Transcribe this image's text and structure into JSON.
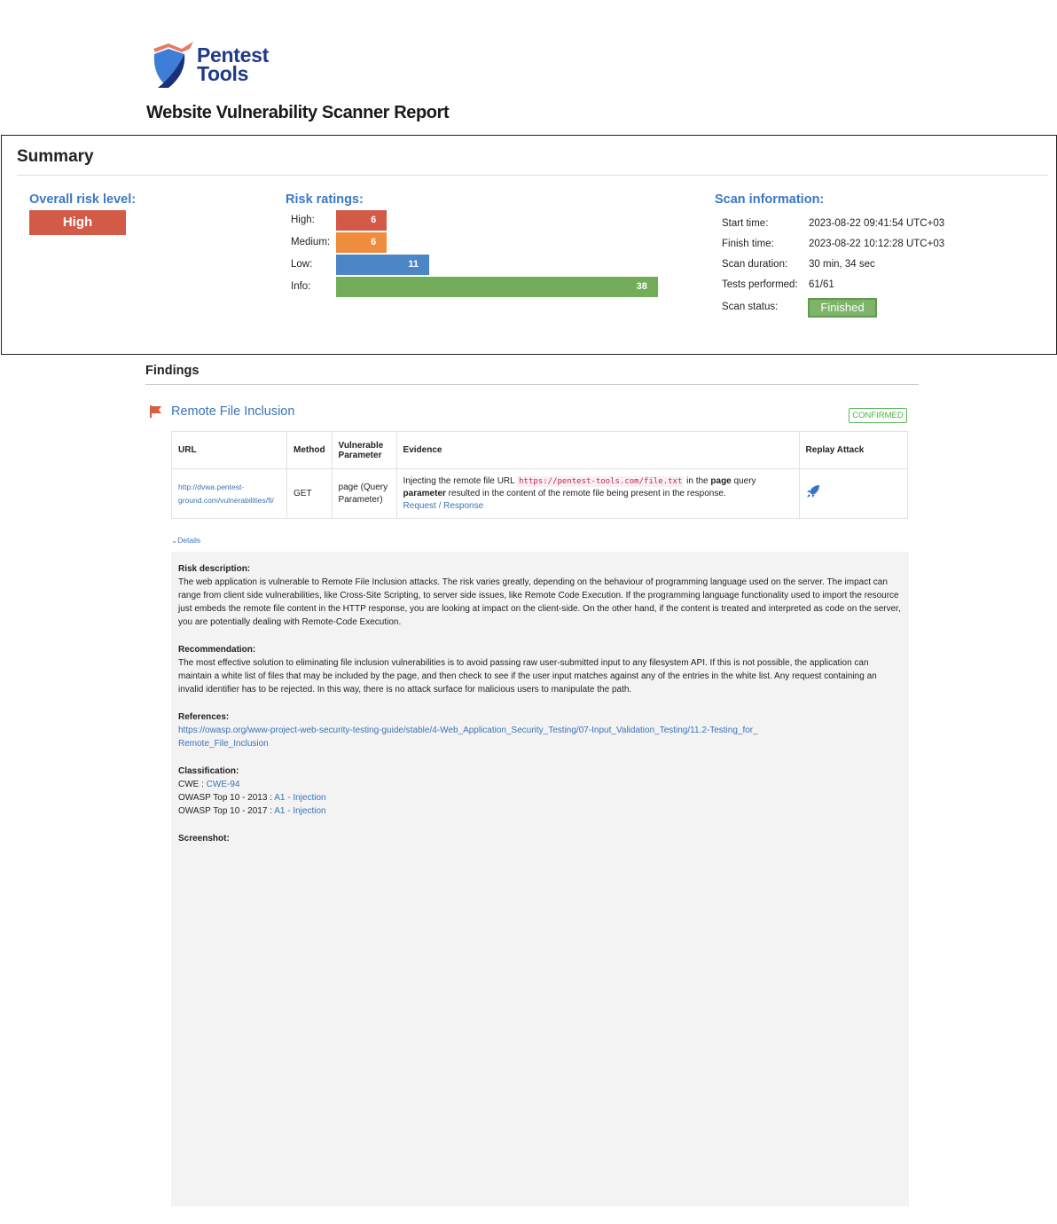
{
  "logo": {
    "line1": "Pentest",
    "line2": "Tools"
  },
  "report_title": "Website Vulnerability Scanner Report",
  "summary": {
    "title": "Summary",
    "overall_label": "Overall risk level:",
    "overall_value": "High",
    "risk_label": "Risk ratings:",
    "ratings": [
      {
        "label": "High:",
        "value": 6,
        "color": "#d25a47"
      },
      {
        "label": "Medium:",
        "value": 6,
        "color": "#ef8c3e"
      },
      {
        "label": "Low:",
        "value": 11,
        "color": "#4d86c6"
      },
      {
        "label": "Info:",
        "value": 38,
        "color": "#74ad59"
      }
    ],
    "scan_label": "Scan information:",
    "scan": [
      {
        "label": "Start time:",
        "value": "2023-08-22 09:41:54 UTC+03"
      },
      {
        "label": "Finish time:",
        "value": "2023-08-22 10:12:28 UTC+03"
      },
      {
        "label": "Scan duration:",
        "value": "30 min, 34 sec"
      },
      {
        "label": "Tests performed:",
        "value": "61/61"
      },
      {
        "label": "Scan status:",
        "value": "Finished"
      }
    ]
  },
  "findings": {
    "title": "Findings",
    "vuln_title": "Remote File Inclusion",
    "status": "CONFIRMED",
    "headers": [
      "URL",
      "Method",
      "Vulnerable Parameter",
      "Evidence",
      "Replay Attack"
    ],
    "row": {
      "url": "http://dvwa.pentest-ground.com/vulnerabilities/fi/",
      "method": "GET",
      "param": "page (Query Parameter)",
      "ev_pre": "Injecting the remote file URL ",
      "ev_code": "https://pentest-tools.com/file.txt",
      "ev_mid": " in the ",
      "ev_bold1": "page",
      "ev_mid2": " query ",
      "ev_bold2": "parameter",
      "ev_post": " resulted in the content of the remote file being present in the response.",
      "ev_link": "Request / Response"
    },
    "details_label": "Details",
    "risk_desc_h": "Risk description:",
    "risk_desc": "The web application is vulnerable to Remote File Inclusion attacks. The risk varies greatly, depending on the behaviour of programming language used on the server. The impact can range from client side vulnerabilities, like Cross-Site Scripting, to server side issues, like Remote Code Execution. If the programming language functionality used to import the resource just embeds the remote file content in the HTTP response, you are looking at impact on the client-side. On the other hand, if the content is treated and interpreted as code on the server, you are potentially dealing with Remote-Code Execution.",
    "rec_h": "Recommendation:",
    "rec": "The most effective solution to eliminating file inclusion vulnerabilities is to avoid passing raw user-submitted input to any filesystem API. If this is not possible, the application can maintain a white list of files that may be included by the page, and then check to see if the user input matches against any of the entries in the white list. Any request containing an invalid identifier has to be rejected. In this way, there is no attack surface for malicious users to manipulate the path.",
    "ref_h": "References:",
    "ref": "https://owasp.org/www-project-web-security-testing-guide/stable/4-Web_Application_Security_Testing/07-Input_Validation_Testing/11.2-Testing_for_Remote_File_Inclusion",
    "class_h": "Classification:",
    "class": [
      {
        "label": "CWE : ",
        "value": "CWE-94"
      },
      {
        "label": "OWASP Top 10 - 2013 : ",
        "value": "A1 - Injection"
      },
      {
        "label": "OWASP Top 10 - 2017 : ",
        "value": "A1 - Injection"
      }
    ],
    "screenshot_h": "Screenshot:"
  }
}
